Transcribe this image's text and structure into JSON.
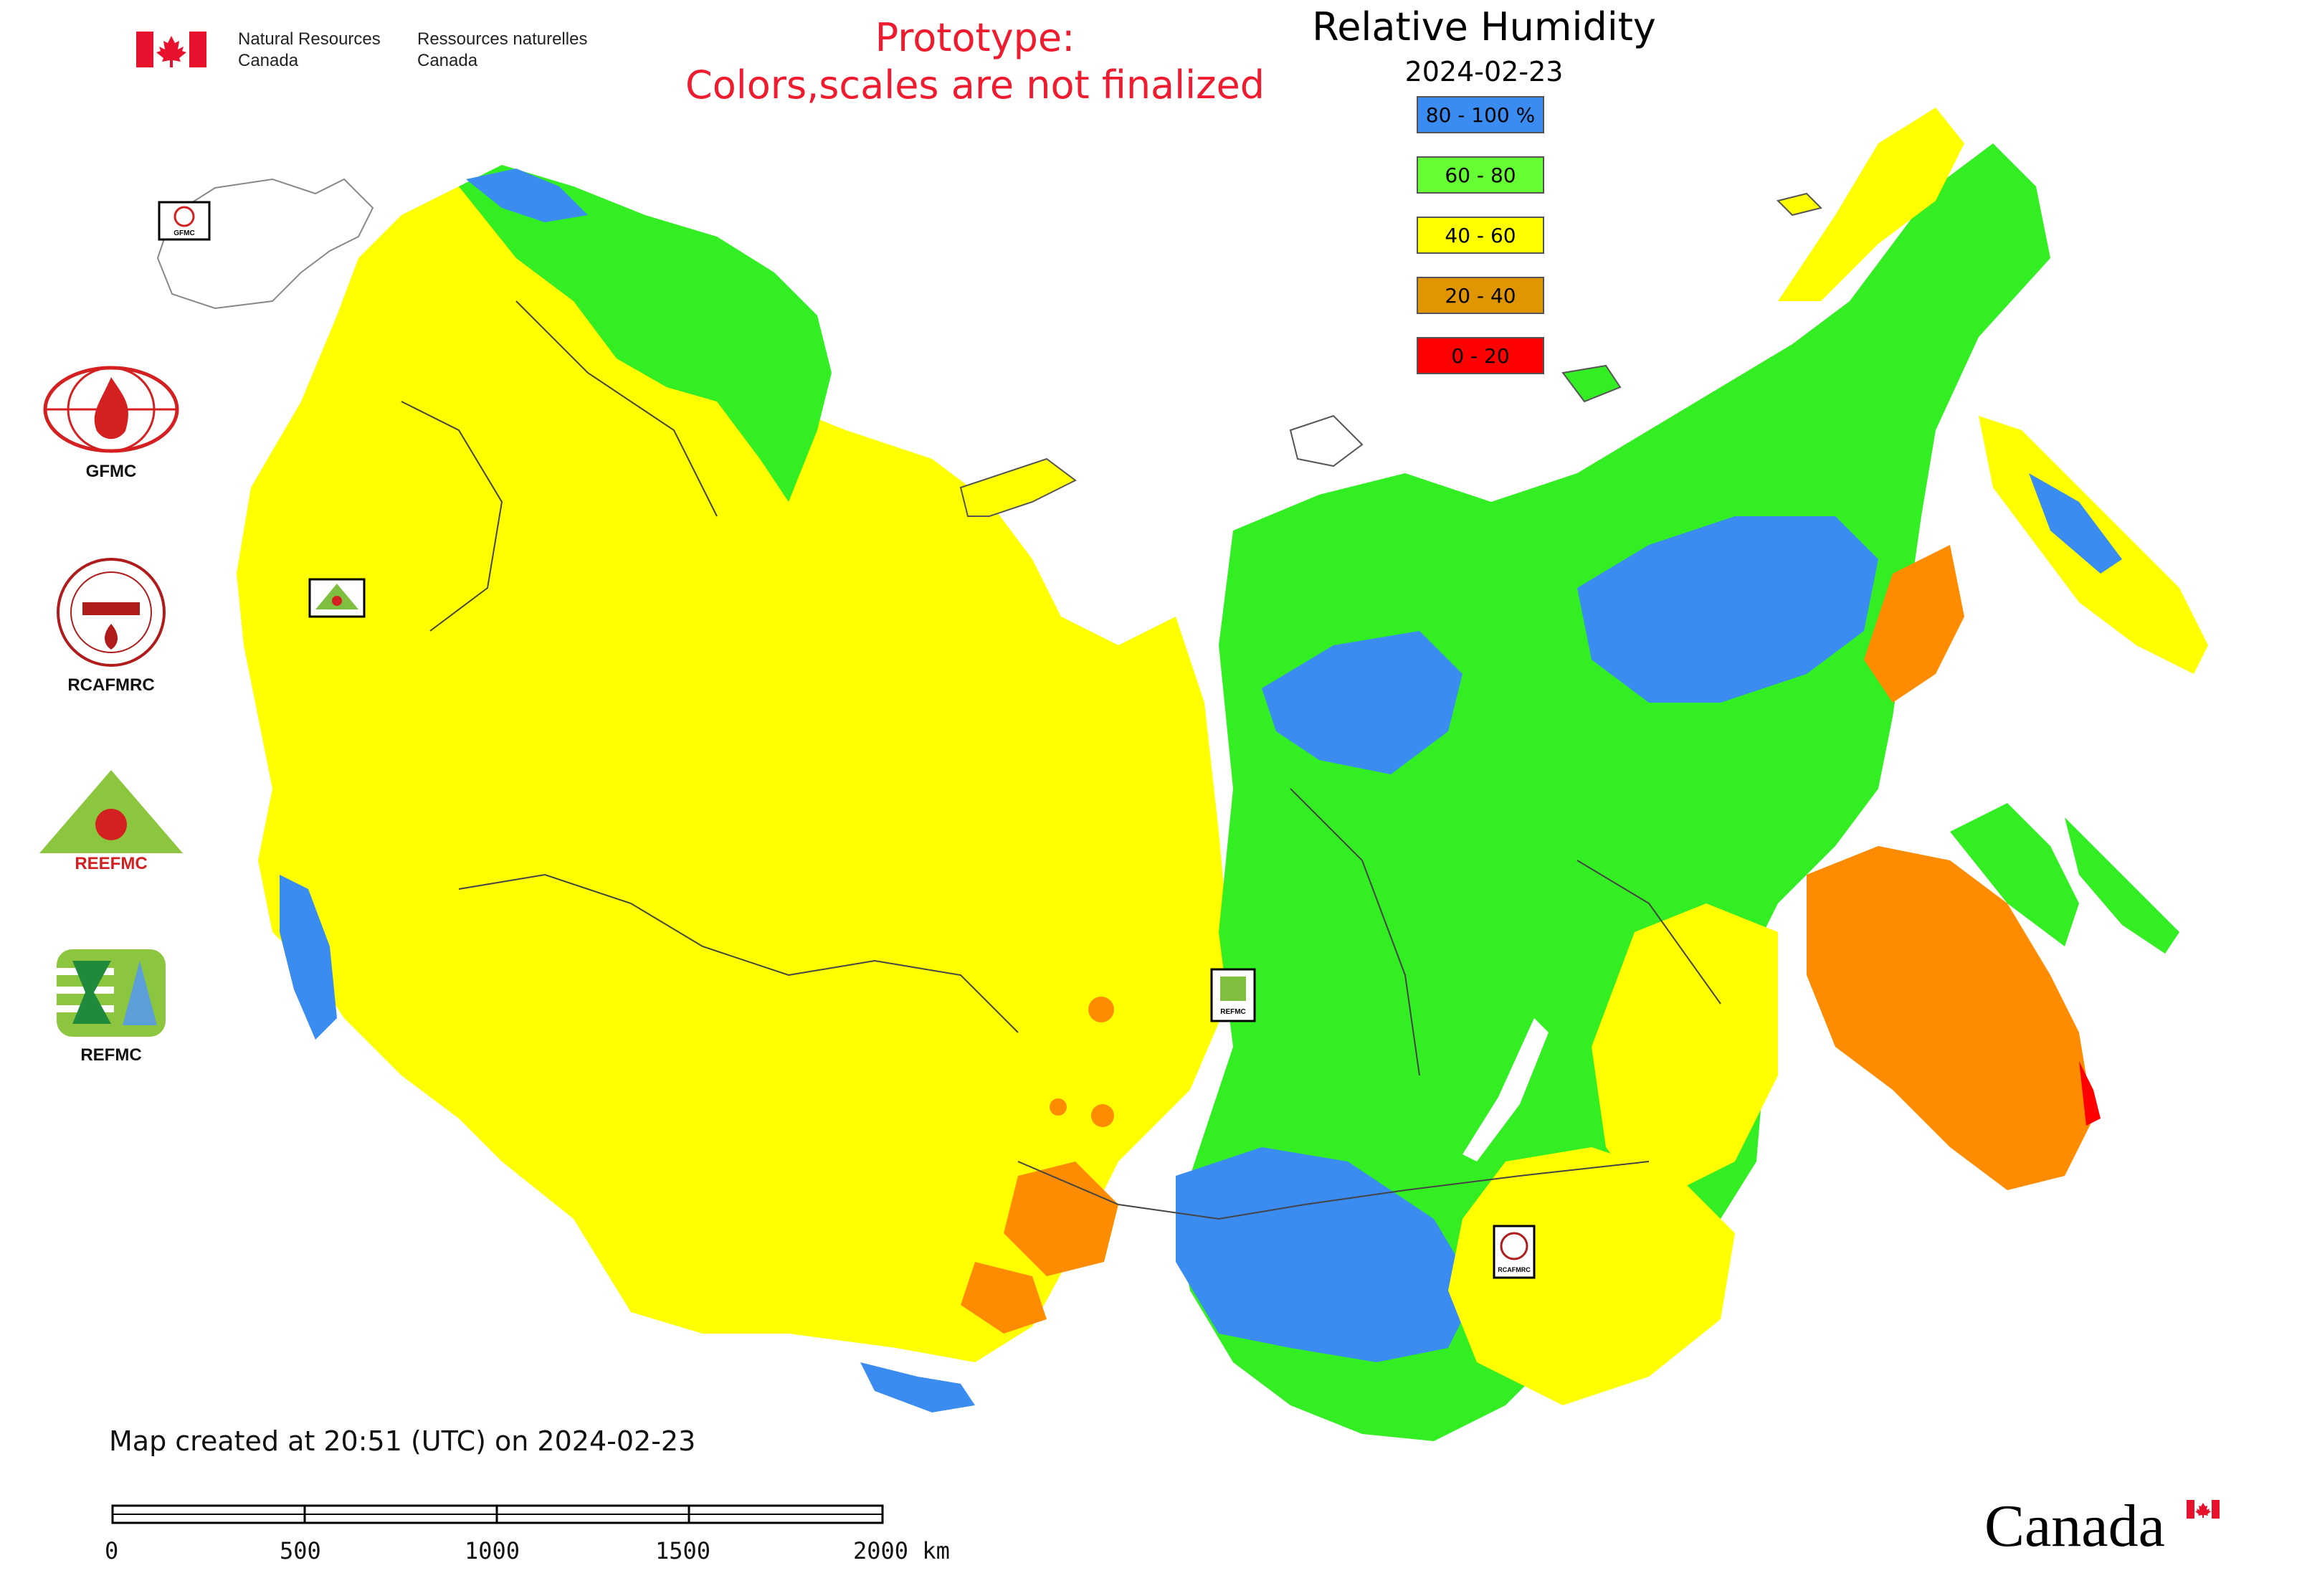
{
  "header": {
    "org_en_line1": "Natural Resources",
    "org_en_line2": "Canada",
    "org_fr_line1": "Ressources naturelles",
    "org_fr_line2": "Canada",
    "prototype_line1": "Prototype:",
    "prototype_line2": "Colors,scales are not finalized"
  },
  "legend": {
    "title": "Relative Humidity",
    "date": "2024-02-23",
    "items": [
      {
        "label": "80 - 100 %",
        "color": "#3a8cf0"
      },
      {
        "label": "60 - 80",
        "color": "#66ff33"
      },
      {
        "label": "40 - 60",
        "color": "#ffff00"
      },
      {
        "label": "20 - 40",
        "color": "#e09600"
      },
      {
        "label": "0 - 20",
        "color": "#ff0000"
      }
    ]
  },
  "side_logos": [
    {
      "label": "GFMC",
      "icon": "gfmc-logo"
    },
    {
      "label": "RCAFMRC",
      "icon": "rcafmrc-logo"
    },
    {
      "label": "",
      "icon": "reefmc-logo"
    },
    {
      "label": "REFMC",
      "icon": "refmc-logo"
    }
  ],
  "map_markers": [
    {
      "label": "GFMC"
    },
    {
      "label": "REEFMC"
    },
    {
      "label": "REFMC"
    },
    {
      "label": "RCAFMRC"
    }
  ],
  "footer": {
    "created": "Map created at 20:51 (UTC) on 2024-02-23",
    "scale_labels": [
      "0",
      "500",
      "1000",
      "1500",
      "2000 km"
    ],
    "wordmark": "Canada"
  }
}
